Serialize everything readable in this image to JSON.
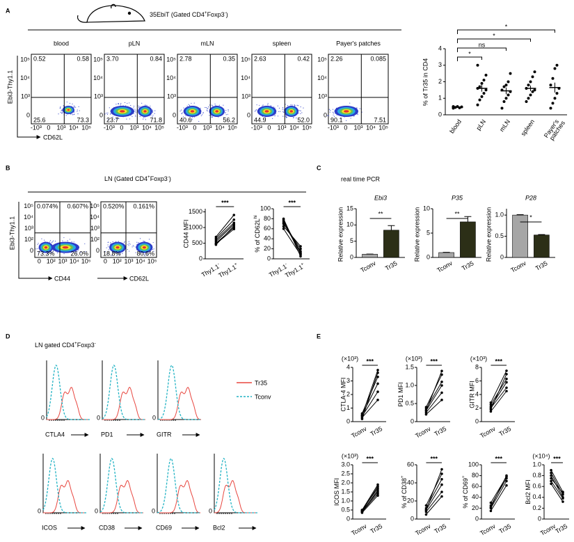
{
  "panel_labels": [
    "A",
    "B",
    "C",
    "D",
    "E"
  ],
  "a": {
    "title": [
      "35EbiT (Gated CD4",
      "+",
      "Foxp3",
      "-",
      ")"
    ],
    "ylabel": "Ebi3-Thy1.1",
    "xlabel": "CD62L",
    "flow_xticks": [
      "-10³",
      "0",
      "10³",
      "10⁴",
      "10⁵"
    ],
    "flow_yticks": [
      "0",
      "10³",
      "10⁴",
      "10⁵"
    ],
    "plots": [
      {
        "name": "blood",
        "q": [
          "0.52",
          "0.58",
          "25.6",
          "73.3"
        ]
      },
      {
        "name": "pLN",
        "q": [
          "3.70",
          "0.84",
          "23.7",
          "71.8"
        ]
      },
      {
        "name": "mLN",
        "q": [
          "2.78",
          "0.35",
          "40.6",
          "56.2"
        ]
      },
      {
        "name": "spleen",
        "q": [
          "2.63",
          "0.42",
          "44.9",
          "52.0"
        ]
      },
      {
        "name": "Payer's patches",
        "q": [
          "2.26",
          "0.085",
          "90.1",
          "7.51"
        ]
      }
    ],
    "dot_plot": {
      "ylabel": "% of Tr35 in CD4",
      "categories": [
        "blood",
        "pLN",
        "mLN",
        "spleen",
        [
          "Payer's",
          "patches"
        ]
      ],
      "ylim": [
        0,
        4
      ],
      "yticks": [
        0,
        1,
        2,
        3,
        4
      ],
      "points": [
        [
          0.4,
          0.45,
          0.5,
          0.42,
          0.48,
          0.5
        ],
        [
          0.6,
          0.9,
          1.1,
          1.3,
          1.5,
          1.6,
          1.7,
          1.9,
          2.1,
          2.4,
          3.0
        ],
        [
          0.4,
          0.8,
          1.0,
          1.2,
          1.4,
          1.5,
          1.7,
          1.8,
          2.0,
          2.5
        ],
        [
          0.8,
          1.0,
          1.2,
          1.4,
          1.5,
          1.6,
          1.8,
          2.0,
          2.3,
          2.6
        ],
        [
          0.4,
          0.7,
          1.0,
          1.3,
          1.6,
          1.8,
          2.2,
          2.8,
          3.0
        ]
      ],
      "means": [
        0.46,
        1.6,
        1.45,
        1.6,
        1.65
      ],
      "sems": [
        0.03,
        0.2,
        0.2,
        0.17,
        0.3
      ],
      "significance": [
        "*",
        "ns",
        "*",
        "*"
      ]
    }
  },
  "b": {
    "title": [
      "LN (Gated CD4",
      "+",
      "Foxp3",
      "-",
      ")"
    ],
    "ylabel": "Ebi3-Thy1.1",
    "xlabels": [
      "CD44",
      "CD62L"
    ],
    "flow_xticks": [
      "0",
      "10²",
      "10³",
      "10⁴",
      "10⁵"
    ],
    "flow_yticks": [
      "0",
      "10²",
      "10³",
      "10⁴",
      "10⁵"
    ],
    "plots": [
      {
        "q": [
          "0.074%",
          "0.607%",
          "73.3%",
          "26.0%"
        ]
      },
      {
        "q": [
          "0.520%",
          "0.161%",
          "18.8%",
          "80.6%"
        ]
      }
    ],
    "paired": [
      {
        "ylabel": [
          "CD44 MFI"
        ],
        "categories": [
          [
            "Thy1.1",
            "-"
          ],
          [
            "Thy1.1",
            "+"
          ]
        ],
        "ylim": [
          0,
          1600
        ],
        "yticks": [
          0,
          500,
          1000,
          1500
        ],
        "sig": "***",
        "pairs": [
          [
            450,
            1050
          ],
          [
            500,
            1000
          ],
          [
            550,
            1100
          ],
          [
            600,
            1150
          ],
          [
            650,
            1250
          ],
          [
            700,
            1400
          ],
          [
            480,
            950
          ]
        ]
      },
      {
        "ylabel": [
          "% of CD62L",
          "hi"
        ],
        "categories": [
          [
            "Thy1.1",
            "-"
          ],
          [
            "Thy1.1",
            "+"
          ]
        ],
        "ylim": [
          0,
          100
        ],
        "yticks": [
          0,
          20,
          40,
          60,
          80,
          100
        ],
        "sig": "***",
        "pairs": [
          [
            80,
            5
          ],
          [
            78,
            10
          ],
          [
            75,
            15
          ],
          [
            70,
            20
          ],
          [
            65,
            25
          ],
          [
            60,
            8
          ],
          [
            72,
            12
          ]
        ]
      }
    ]
  },
  "c": {
    "title": "real time PCR",
    "charts": [
      {
        "title": "Ebi3",
        "ylabel": "Relative expression",
        "categories": [
          "Tconv",
          "Tr35"
        ],
        "values": [
          1,
          8.4
        ],
        "errors": [
          0.05,
          1.4
        ],
        "ylim": [
          0,
          15
        ],
        "yticks": [
          0,
          5,
          10,
          15
        ],
        "sig": "**",
        "colors": [
          "#a6a6a6",
          "#2c2f17"
        ]
      },
      {
        "title": "P35",
        "ylabel": "Relative expression",
        "categories": [
          "Tconv",
          "Tr35"
        ],
        "values": [
          1,
          7.3
        ],
        "errors": [
          0.05,
          1.1
        ],
        "ylim": [
          0,
          10
        ],
        "yticks": [
          0,
          5,
          10
        ],
        "sig": "**",
        "colors": [
          "#a6a6a6",
          "#2c2f17"
        ]
      },
      {
        "title": "P28",
        "ylabel": "Relative expression",
        "categories": [
          "Tconv",
          "Tr35"
        ],
        "values": [
          1.0,
          0.53
        ],
        "errors": [
          0.01,
          0.01
        ],
        "ylim": [
          0,
          1.15
        ],
        "yticks": [
          0,
          0.5,
          {
            "value": 1,
            "label": "1.0"
          }
        ],
        "sig": "*",
        "colors": [
          "#a6a6a6",
          "#2c2f17"
        ]
      }
    ]
  },
  "d": {
    "title": [
      "LN gated CD4",
      "+",
      "Foxp3",
      "-"
    ],
    "legend": [
      "Tr35",
      "Tconv"
    ],
    "colors": [
      "#e8463f",
      "#22b3c4"
    ],
    "hist_ytick": "0",
    "row1": [
      "CTLA4",
      "PD1",
      "GITR"
    ],
    "row2": [
      "ICOS",
      "CD38",
      "CD69",
      "Bcl2"
    ]
  },
  "e": {
    "plots": [
      {
        "ylabel": [
          "CTLA-4 MFI"
        ],
        "unit": "(×10³)",
        "categories": [
          "Tconv",
          "Tr35"
        ],
        "ylim": [
          0,
          4
        ],
        "yticks": [
          0,
          1,
          2,
          3,
          4
        ],
        "sig": "***",
        "pairs": [
          [
            0.3,
            1.6
          ],
          [
            0.4,
            2.2
          ],
          [
            0.5,
            2.8
          ],
          [
            0.6,
            3.3
          ],
          [
            0.2,
            3.6
          ],
          [
            0.45,
            3.8
          ]
        ]
      },
      {
        "ylabel": [
          "PD1 MFI"
        ],
        "unit": "(×10³)",
        "categories": [
          "Tconv",
          "Tr35"
        ],
        "ylim": [
          0,
          1.5
        ],
        "yticks": [
          0,
          0.5,
          {
            "value": 1,
            "label": "1.0"
          },
          1.5
        ],
        "sig": "***",
        "pairs": [
          [
            0.2,
            0.6
          ],
          [
            0.25,
            0.8
          ],
          [
            0.3,
            1.0
          ],
          [
            0.35,
            1.1
          ],
          [
            0.4,
            1.3
          ],
          [
            0.3,
            1.4
          ]
        ]
      },
      {
        "ylabel": [
          "GITR MFI"
        ],
        "unit": "(×10³)",
        "categories": [
          "Tconv",
          "Tr35"
        ],
        "ylim": [
          0,
          8
        ],
        "yticks": [
          0,
          2,
          4,
          6,
          8
        ],
        "sig": "***",
        "pairs": [
          [
            1.5,
            4.5
          ],
          [
            2.0,
            5.0
          ],
          [
            2.2,
            5.8
          ],
          [
            2.5,
            6.3
          ],
          [
            1.8,
            7.0
          ],
          [
            2.8,
            7.5
          ]
        ]
      },
      {
        "ylabel": [
          "ICOS MFI"
        ],
        "unit": "(×10³)",
        "categories": [
          "Tconv",
          "Tr35"
        ],
        "ylim": [
          0,
          3
        ],
        "yticks": [
          0,
          0.5,
          {
            "value": 1,
            "label": "1.0"
          },
          1.5,
          {
            "value": 2,
            "label": "2.0"
          },
          2.5,
          {
            "value": 3,
            "label": "3.0"
          }
        ],
        "sig": "***",
        "pairs": [
          [
            0.35,
            1.3
          ],
          [
            0.4,
            1.4
          ],
          [
            0.45,
            1.5
          ],
          [
            0.4,
            1.6
          ],
          [
            0.5,
            1.7
          ],
          [
            0.45,
            1.8
          ],
          [
            0.5,
            1.9
          ]
        ]
      },
      {
        "ylabel": [
          "% of CD38",
          "+"
        ],
        "categories": [
          "Tconv",
          "Tr35"
        ],
        "ylim": [
          0,
          60
        ],
        "yticks": [
          0,
          20,
          40,
          60
        ],
        "sig": "***",
        "pairs": [
          [
            5,
            25
          ],
          [
            8,
            30
          ],
          [
            10,
            38
          ],
          [
            12,
            44
          ],
          [
            15,
            50
          ],
          [
            10,
            55
          ]
        ]
      },
      {
        "ylabel": [
          "% of CD69",
          "+"
        ],
        "categories": [
          "Tconv",
          "Tr35"
        ],
        "ylim": [
          0,
          100
        ],
        "yticks": [
          0,
          20,
          40,
          60,
          80,
          100
        ],
        "sig": "***",
        "pairs": [
          [
            15,
            62
          ],
          [
            20,
            70
          ],
          [
            25,
            75
          ],
          [
            30,
            78
          ],
          [
            22,
            80
          ]
        ]
      },
      {
        "ylabel": [
          "Bcl2 MFI"
        ],
        "unit": "(×10⁴)",
        "categories": [
          "Tconv",
          "Tr35"
        ],
        "ylim": [
          0,
          1
        ],
        "yticks": [
          0,
          0.2,
          0.4,
          0.6,
          0.8,
          {
            "value": 1,
            "label": "1.0"
          }
        ],
        "sig": "***",
        "pairs": [
          [
            0.9,
            0.5
          ],
          [
            0.85,
            0.45
          ],
          [
            0.8,
            0.4
          ],
          [
            0.7,
            0.38
          ],
          [
            0.65,
            0.32
          ],
          [
            0.75,
            0.48
          ]
        ]
      }
    ]
  }
}
